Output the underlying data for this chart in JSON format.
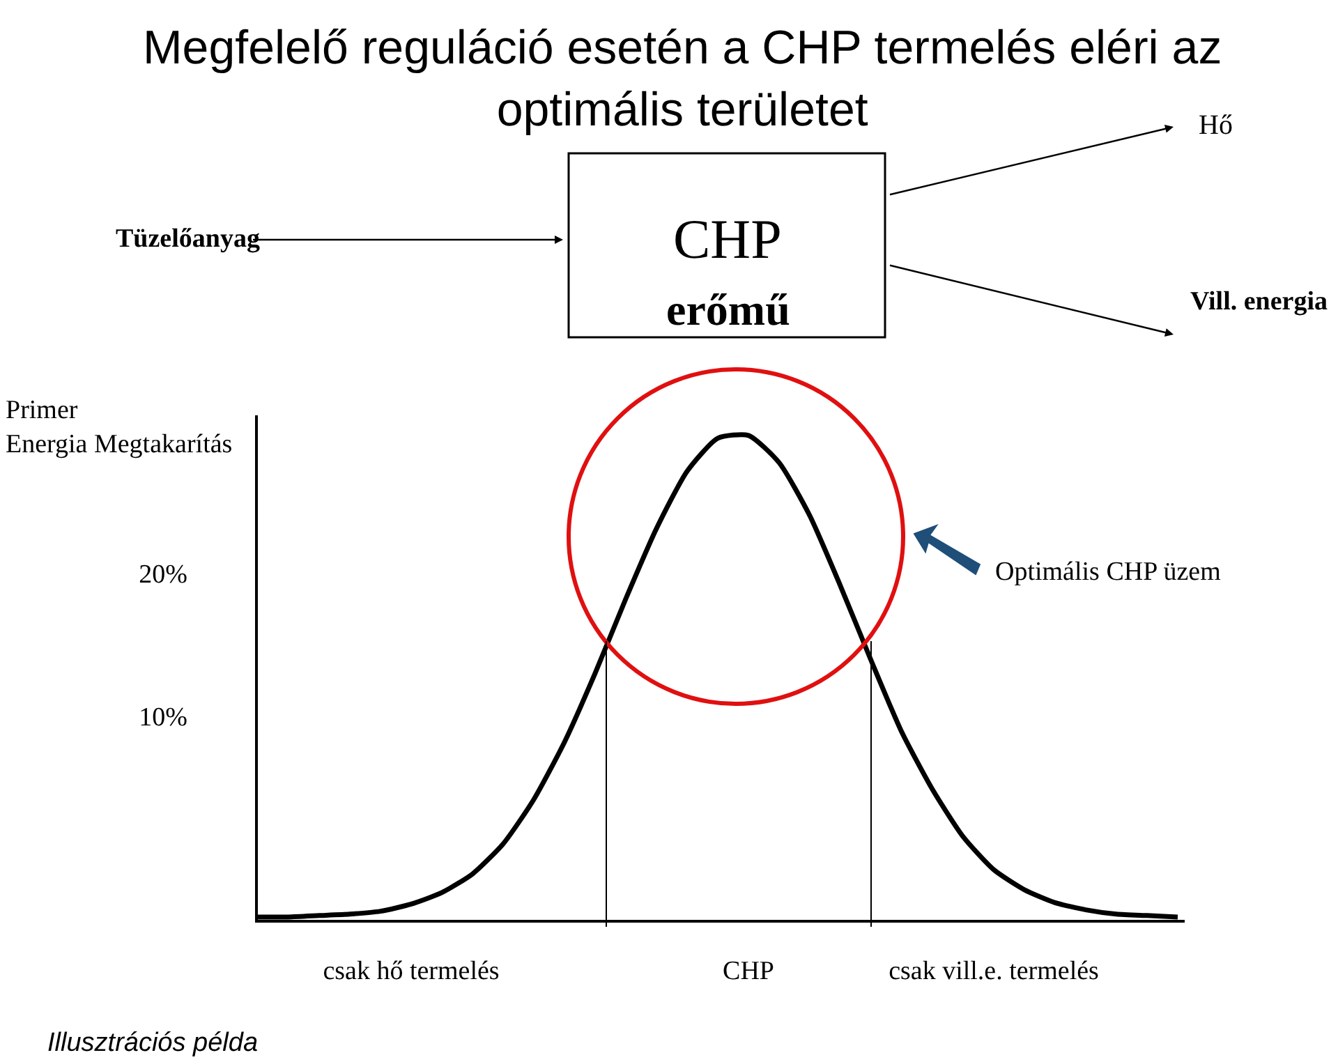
{
  "chart_data": {
    "type": "line",
    "title": "Megfelelő reguláció esetén a CHP termelés eléri az\noptimális területet",
    "ylabel": "Primer\nEnergia Megtakarítás",
    "categories": [
      null,
      null,
      null,
      null,
      null,
      "csak hő termelés",
      null,
      null,
      null,
      null,
      null,
      null,
      null,
      null,
      null,
      null,
      "CHP",
      null,
      null,
      null,
      null,
      null,
      null,
      null,
      "csak vill.e. termelés",
      null,
      null,
      null,
      null,
      null,
      null
    ],
    "series": [
      {
        "color": "#000000",
        "values": [
          -4.0,
          -4.0,
          -3.9,
          -3.8,
          -3.6,
          -3.1,
          -2.3,
          -1.0,
          1.1,
          4.2,
          8.2,
          13.0,
          18.2,
          23.1,
          27.1,
          29.4,
          29.6,
          27.7,
          24.0,
          19.1,
          13.9,
          8.9,
          4.9,
          1.6,
          -0.7,
          -2.1,
          -3.0,
          -3.5,
          -3.8,
          -3.9,
          -4.0
        ]
      }
    ],
    "ylim": [
      -4.2,
      31
    ],
    "yticks": [
      {
        "value": 10,
        "label": "10%"
      },
      {
        "value": 20,
        "label": "20%"
      }
    ],
    "annotations": [
      "Tüzelőanyag",
      "CHP",
      "erőmű",
      "Hő",
      "Vill. energia",
      "Optimális CHP üzem",
      "Illusztrációs példa"
    ],
    "marker": "none",
    "line_style": "solid"
  }
}
